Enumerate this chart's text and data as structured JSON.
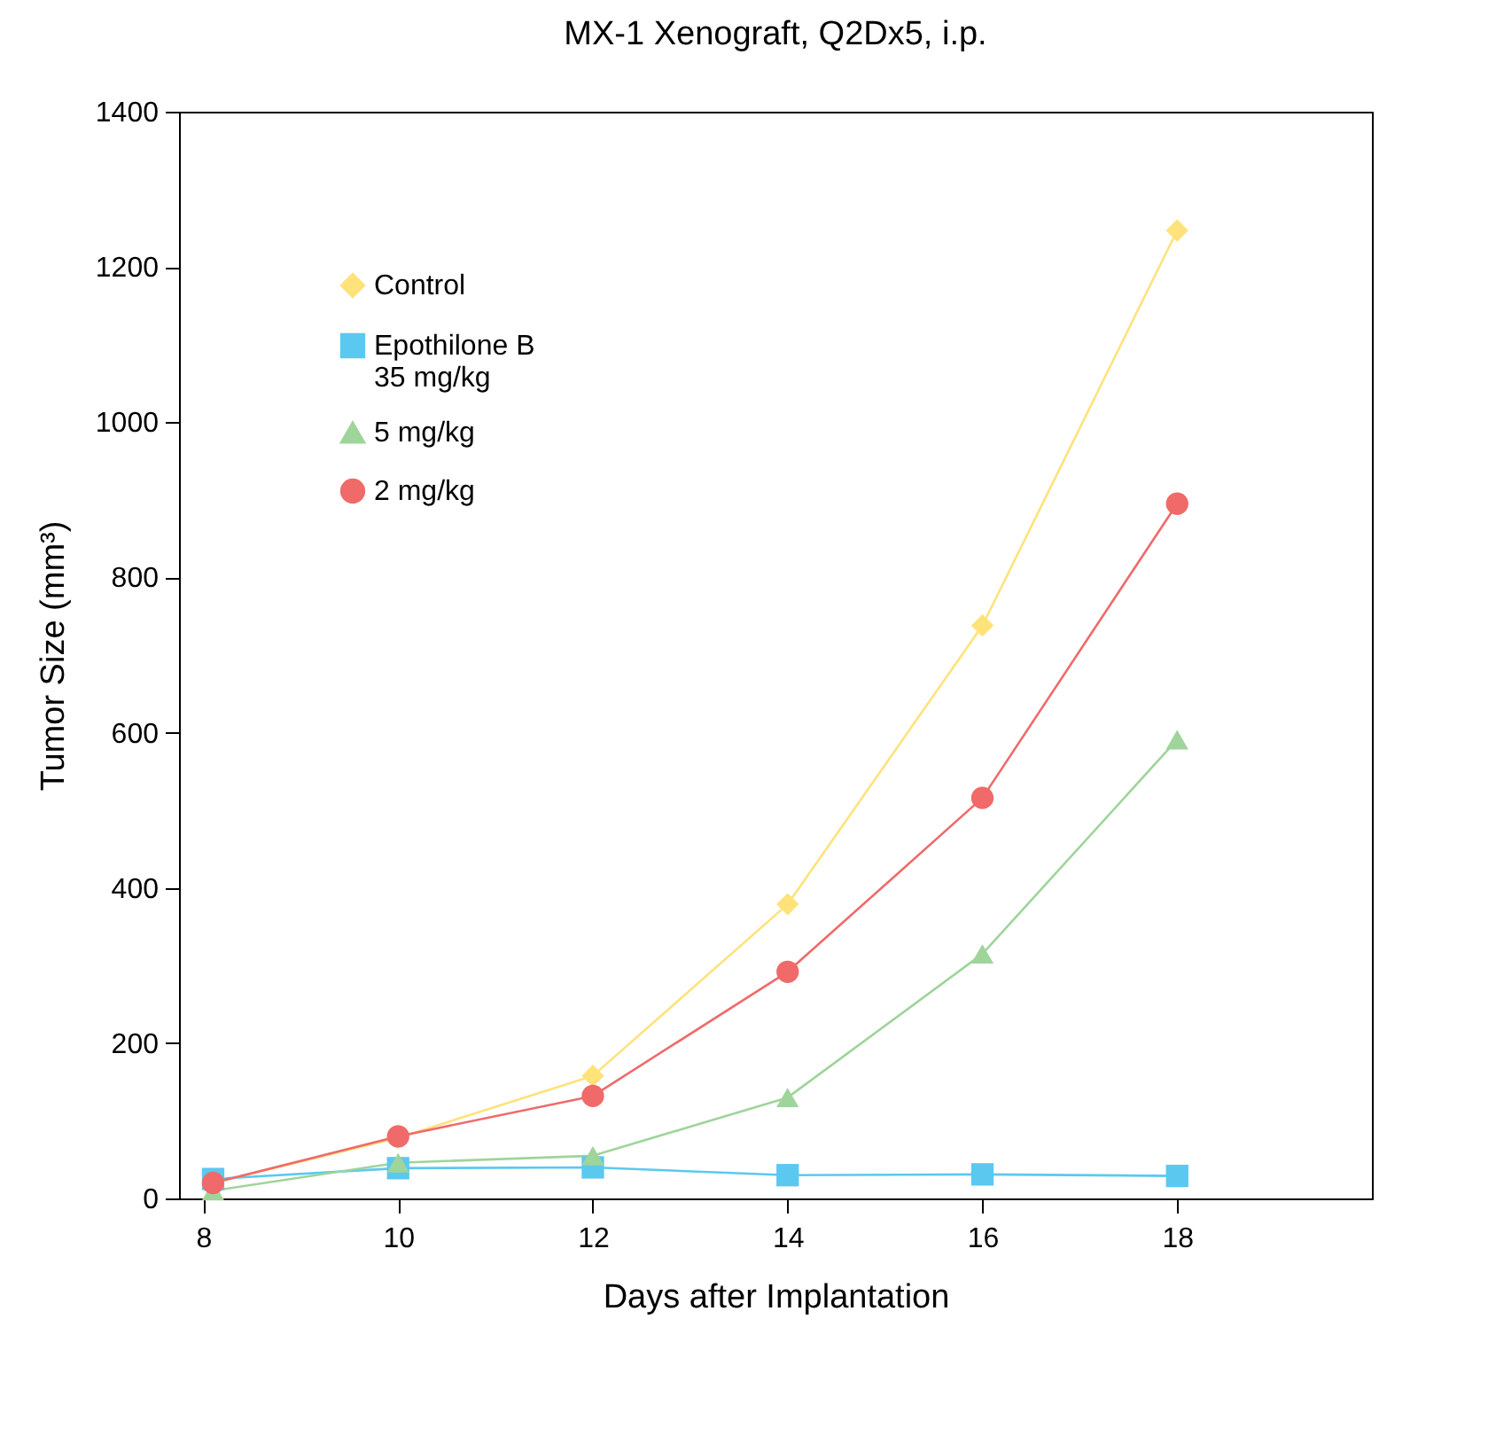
{
  "chart_data": {
    "type": "line",
    "title": "MX-1 Xenograft, Q2Dx5, i.p.",
    "xlabel": "Days after Implantation",
    "ylabel": "Tumor Size (mm³)",
    "xlim": [
      7.75,
      20
    ],
    "xticks": [
      8,
      10,
      12,
      14,
      16,
      18
    ],
    "ylim": [
      0,
      1400
    ],
    "yticks": [
      0,
      200,
      400,
      600,
      800,
      1000,
      1200,
      1400
    ],
    "x": [
      8.1,
      10,
      12,
      14,
      16,
      18
    ],
    "legend": "top left",
    "grid": false,
    "series": [
      {
        "name": "Control",
        "color": "#ffe27a",
        "marker": "diamond",
        "values": [
          20,
          78,
          158,
          379,
          738,
          1247
        ]
      },
      {
        "name": "Epothilone B\n35 mg/kg",
        "color": "#5bc8f0",
        "marker": "square",
        "values": [
          25,
          39,
          40,
          30,
          31,
          29
        ]
      },
      {
        "name": "5 mg/kg",
        "color": "#9fd49a",
        "marker": "triangle",
        "values": [
          10,
          46,
          55,
          130,
          315,
          591
        ]
      },
      {
        "name": "2 mg/kg",
        "color": "#f06a6a",
        "marker": "circle",
        "values": [
          20,
          80,
          132,
          292,
          516,
          895
        ]
      }
    ]
  }
}
